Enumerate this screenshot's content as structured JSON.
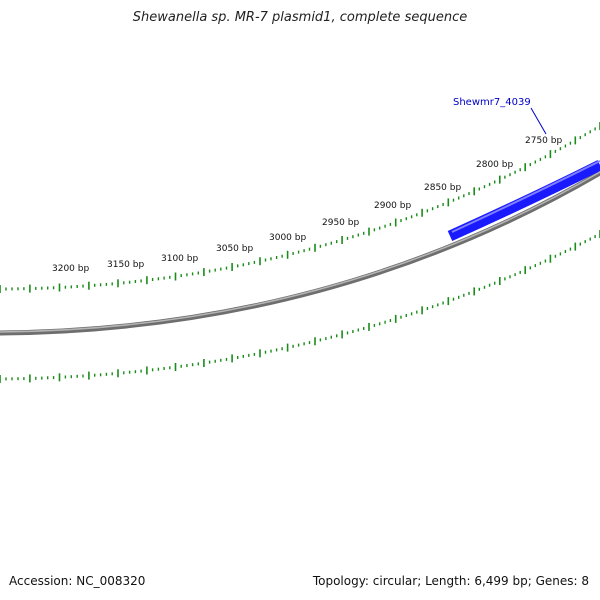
{
  "title": "Shewanella sp. MR-7 plasmid1, complete sequence",
  "accession_label": "Accession: NC_008320",
  "summary_label": "Topology: circular; Length: 6,499 bp; Genes: 8",
  "colors": {
    "backbone": "#8a8a8a",
    "tick": "#1a8c1a",
    "gene": "#1a1aff",
    "gene_label": "#0000c8"
  },
  "tick_labels": [
    "2750 bp",
    "2800 bp",
    "2850 bp",
    "2900 bp",
    "2950 bp",
    "3000 bp",
    "3050 bp",
    "3100 bp",
    "3150 bp",
    "3200 bp"
  ],
  "gene": {
    "name": "Shewmr7_4039"
  }
}
